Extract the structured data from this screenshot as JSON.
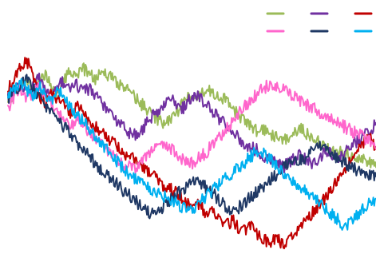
{
  "chart_data": {
    "type": "line",
    "title": "",
    "xlabel": "",
    "ylabel": "",
    "grid": false,
    "legend": "top-right",
    "series": [
      {
        "color": "#9BBB59",
        "values": [
          42,
          48,
          52,
          55,
          49,
          53,
          58,
          51,
          47,
          55,
          60,
          57,
          62,
          59,
          56,
          61,
          58,
          55,
          52,
          50,
          47,
          44,
          40,
          37,
          34,
          31,
          33,
          38,
          42,
          46,
          44,
          48,
          51,
          49,
          46,
          44,
          40,
          36,
          33,
          30,
          28,
          29,
          26,
          24,
          22,
          25,
          27,
          29,
          26,
          24,
          21,
          19,
          17,
          16,
          15,
          13,
          11,
          12,
          10,
          8
        ]
      },
      {
        "color": "#7030A0",
        "values": [
          45,
          50,
          54,
          48,
          52,
          56,
          50,
          46,
          52,
          55,
          49,
          53,
          48,
          51,
          47,
          43,
          39,
          35,
          31,
          28,
          25,
          27,
          31,
          35,
          38,
          41,
          45,
          43,
          40,
          44,
          47,
          45,
          42,
          38,
          34,
          30,
          27,
          24,
          21,
          19,
          17,
          14,
          12,
          10,
          8,
          10,
          13,
          15,
          12,
          10,
          14,
          17,
          15,
          12,
          16,
          19,
          22,
          25,
          28,
          32
        ]
      },
      {
        "color": "#C00000",
        "values": [
          50,
          56,
          62,
          66,
          58,
          47,
          43,
          49,
          45,
          41,
          38,
          42,
          37,
          33,
          30,
          27,
          24,
          21,
          18,
          15,
          13,
          10,
          7,
          4,
          1,
          -2,
          -4,
          -6,
          -9,
          -12,
          -10,
          -14,
          -18,
          -16,
          -20,
          -23,
          -21,
          -25,
          -27,
          -24,
          -28,
          -31,
          -33,
          -30,
          -34,
          -32,
          -28,
          -24,
          -20,
          -16,
          -12,
          -8,
          -3,
          2,
          7,
          12,
          17,
          21,
          24,
          19
        ]
      },
      {
        "color": "#FF66CC",
        "values": [
          40,
          46,
          51,
          45,
          49,
          53,
          47,
          42,
          38,
          34,
          30,
          35,
          31,
          27,
          23,
          20,
          17,
          14,
          11,
          9,
          7,
          10,
          13,
          16,
          19,
          22,
          18,
          15,
          12,
          9,
          11,
          14,
          17,
          21,
          25,
          29,
          33,
          37,
          41,
          45,
          48,
          51,
          53,
          52,
          50,
          48,
          46,
          44,
          42,
          40,
          38,
          36,
          34,
          32,
          30,
          28,
          26,
          24,
          22,
          18
        ]
      },
      {
        "color": "#1F3864",
        "values": [
          44,
          49,
          53,
          57,
          51,
          46,
          42,
          38,
          34,
          30,
          26,
          22,
          18,
          14,
          10,
          6,
          3,
          0,
          -3,
          -6,
          -9,
          -12,
          -15,
          -18,
          -16,
          -13,
          -10,
          -7,
          -4,
          -1,
          2,
          -1,
          -4,
          -7,
          -10,
          -13,
          -16,
          -14,
          -11,
          -8,
          -5,
          -2,
          1,
          4,
          7,
          10,
          13,
          11,
          14,
          17,
          20,
          18,
          15,
          12,
          10,
          8,
          6,
          5,
          4,
          3
        ]
      },
      {
        "color": "#00B0F0",
        "values": [
          46,
          51,
          55,
          50,
          47,
          52,
          48,
          44,
          49,
          46,
          41,
          37,
          33,
          29,
          25,
          21,
          17,
          13,
          9,
          5,
          2,
          0,
          -2,
          -4,
          -6,
          -8,
          -10,
          -12,
          -14,
          -16,
          -13,
          -10,
          -7,
          -4,
          -1,
          2,
          5,
          8,
          11,
          14,
          17,
          15,
          12,
          9,
          6,
          3,
          0,
          -3,
          -6,
          -9,
          -12,
          -15,
          -18,
          -21,
          -24,
          -21,
          -18,
          -15,
          -12,
          -9
        ]
      }
    ],
    "ylim": [
      -40,
      75
    ],
    "legend_rows": [
      [
        "#9BBB59",
        "#7030A0",
        "#C00000"
      ],
      [
        "#FF66CC",
        "#1F3864",
        "#00B0F0"
      ]
    ]
  }
}
